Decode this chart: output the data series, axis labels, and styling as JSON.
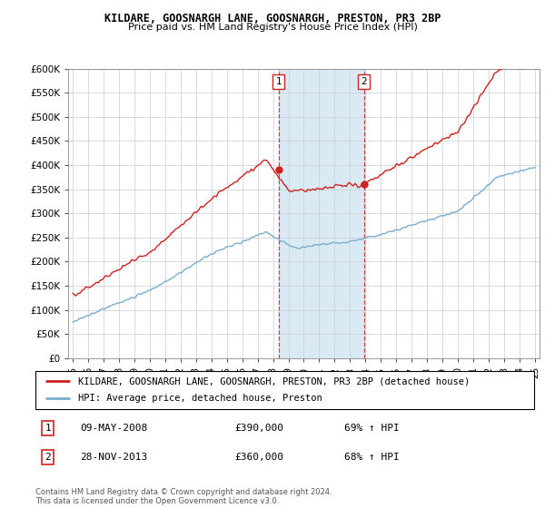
{
  "title": "KILDARE, GOOSNARGH LANE, GOOSNARGH, PRESTON, PR3 2BP",
  "subtitle": "Price paid vs. HM Land Registry's House Price Index (HPI)",
  "legend_line1": "KILDARE, GOOSNARGH LANE, GOOSNARGH, PRESTON, PR3 2BP (detached house)",
  "legend_line2": "HPI: Average price, detached house, Preston",
  "annotation1_label": "1",
  "annotation1_date": "09-MAY-2008",
  "annotation1_price": "£390,000",
  "annotation1_hpi": "69% ↑ HPI",
  "annotation2_label": "2",
  "annotation2_date": "28-NOV-2013",
  "annotation2_price": "£360,000",
  "annotation2_hpi": "68% ↑ HPI",
  "footnote": "Contains HM Land Registry data © Crown copyright and database right 2024.\nThis data is licensed under the Open Government Licence v3.0.",
  "sale1_x": 2008.36,
  "sale1_y": 390000,
  "sale2_x": 2013.91,
  "sale2_y": 360000,
  "hpi_color": "#7aadcf",
  "price_color": "#cc2222",
  "shade_color": "#daeaf5",
  "ylim": [
    0,
    600000
  ],
  "xlim": [
    1994.7,
    2025.3
  ],
  "yticks": [
    0,
    50000,
    100000,
    150000,
    200000,
    250000,
    300000,
    350000,
    400000,
    450000,
    500000,
    550000,
    600000
  ],
  "ytick_labels": [
    "£0",
    "£50K",
    "£100K",
    "£150K",
    "£200K",
    "£250K",
    "£300K",
    "£350K",
    "£400K",
    "£450K",
    "£500K",
    "£550K",
    "£600K"
  ],
  "xticks": [
    1995,
    1996,
    1997,
    1998,
    1999,
    2000,
    2001,
    2002,
    2003,
    2004,
    2005,
    2006,
    2007,
    2008,
    2009,
    2010,
    2011,
    2012,
    2013,
    2014,
    2015,
    2016,
    2017,
    2018,
    2019,
    2020,
    2021,
    2022,
    2023,
    2024,
    2025
  ],
  "xtick_labels": [
    "95",
    "96",
    "97",
    "98",
    "99",
    "00",
    "01",
    "02",
    "03",
    "04",
    "05",
    "06",
    "07",
    "08",
    "09",
    "10",
    "11",
    "12",
    "13",
    "14",
    "15",
    "16",
    "17",
    "18",
    "19",
    "20",
    "21",
    "22",
    "23",
    "24",
    "25"
  ]
}
